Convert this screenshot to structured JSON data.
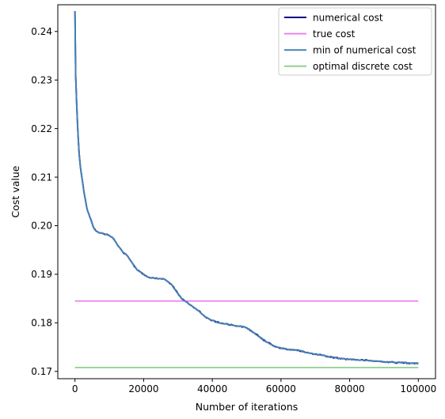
{
  "chart_data": {
    "type": "line",
    "title": "",
    "xlabel": "Number of iterations",
    "ylabel": "Cost value",
    "xlim": [
      -5000,
      105000
    ],
    "ylim": [
      0.1685,
      0.2455
    ],
    "xticks": [
      0,
      20000,
      40000,
      60000,
      80000,
      100000
    ],
    "xtick_labels": [
      "0",
      "20000",
      "40000",
      "60000",
      "80000",
      "100000"
    ],
    "yticks": [
      0.17,
      0.18,
      0.19,
      0.2,
      0.21,
      0.22,
      0.23,
      0.24
    ],
    "ytick_labels": [
      "0.17",
      "0.18",
      "0.19",
      "0.20",
      "0.21",
      "0.22",
      "0.23",
      "0.24"
    ],
    "grid": false,
    "legend_position": "top-right",
    "series": [
      {
        "name": "numerical cost",
        "color": "#000080",
        "style": "noisy",
        "x": [
          0,
          200,
          500,
          800,
          1200,
          1600,
          2000,
          2500,
          3000,
          3500,
          4000,
          4500,
          5000,
          5500,
          6000,
          7000,
          8000,
          9000,
          10000,
          11000,
          12000,
          13000,
          14000,
          15000,
          16000,
          17000,
          18000,
          19000,
          20000,
          21000,
          22000,
          23000,
          24000,
          25000,
          26000,
          27000,
          28000,
          29000,
          30000,
          31000,
          32000,
          33000,
          34000,
          35000,
          36000,
          37000,
          38000,
          39000,
          40000,
          42000,
          44000,
          46000,
          48000,
          50000,
          52000,
          54000,
          56000,
          58000,
          60000,
          62000,
          64000,
          66000,
          68000,
          70000,
          72000,
          74000,
          76000,
          78000,
          80000,
          82000,
          84000,
          86000,
          88000,
          90000,
          92000,
          94000,
          96000,
          98000,
          100000
        ],
        "y": [
          0.2442,
          0.231,
          0.225,
          0.22,
          0.215,
          0.212,
          0.21,
          0.2075,
          0.2055,
          0.2035,
          0.2025,
          0.2015,
          0.2005,
          0.1995,
          0.199,
          0.1985,
          0.1985,
          0.1982,
          0.198,
          0.1975,
          0.1965,
          0.1955,
          0.1945,
          0.194,
          0.193,
          0.192,
          0.191,
          0.1905,
          0.19,
          0.1895,
          0.1893,
          0.1892,
          0.1891,
          0.1891,
          0.189,
          0.1885,
          0.188,
          0.187,
          0.186,
          0.185,
          0.1845,
          0.184,
          0.1835,
          0.183,
          0.1825,
          0.1818,
          0.1812,
          0.1808,
          0.1805,
          0.18,
          0.1798,
          0.1795,
          0.1793,
          0.179,
          0.178,
          0.177,
          0.176,
          0.1752,
          0.1748,
          0.1745,
          0.1744,
          0.1742,
          0.1738,
          0.1735,
          0.1733,
          0.173,
          0.1728,
          0.1726,
          0.1725,
          0.1724,
          0.1723,
          0.1722,
          0.1721,
          0.172,
          0.1719,
          0.1718,
          0.1718,
          0.1717,
          0.1717
        ]
      },
      {
        "name": "true cost",
        "color": "#ee82ee",
        "style": "flat",
        "x": [
          0,
          100000
        ],
        "y": [
          0.1845,
          0.1845
        ]
      },
      {
        "name": "min of numerical cost",
        "color": "#4682b4",
        "style": "step",
        "x": [
          0,
          200,
          500,
          800,
          1200,
          1600,
          2000,
          2500,
          3000,
          3500,
          4000,
          4500,
          5000,
          5500,
          6000,
          7000,
          8000,
          9000,
          10000,
          11000,
          12000,
          13000,
          14000,
          15000,
          16000,
          17000,
          18000,
          19000,
          20000,
          21000,
          22000,
          23000,
          24000,
          25000,
          26000,
          27000,
          28000,
          29000,
          30000,
          31000,
          32000,
          33000,
          34000,
          35000,
          36000,
          37000,
          38000,
          39000,
          40000,
          42000,
          44000,
          46000,
          48000,
          50000,
          52000,
          54000,
          56000,
          58000,
          60000,
          62000,
          64000,
          66000,
          68000,
          70000,
          72000,
          74000,
          76000,
          78000,
          80000,
          82000,
          84000,
          86000,
          88000,
          90000,
          92000,
          94000,
          96000,
          98000,
          100000
        ],
        "y": [
          0.2442,
          0.231,
          0.225,
          0.22,
          0.215,
          0.212,
          0.21,
          0.2075,
          0.2055,
          0.2035,
          0.2025,
          0.2015,
          0.2005,
          0.1995,
          0.199,
          0.1985,
          0.1985,
          0.1982,
          0.198,
          0.1975,
          0.1965,
          0.1955,
          0.1945,
          0.194,
          0.193,
          0.192,
          0.191,
          0.1905,
          0.19,
          0.1895,
          0.1893,
          0.1892,
          0.1891,
          0.1891,
          0.189,
          0.1885,
          0.188,
          0.187,
          0.186,
          0.185,
          0.1845,
          0.184,
          0.1835,
          0.183,
          0.1825,
          0.1818,
          0.1812,
          0.1808,
          0.1805,
          0.18,
          0.1798,
          0.1795,
          0.1793,
          0.179,
          0.178,
          0.177,
          0.176,
          0.1752,
          0.1748,
          0.1745,
          0.1744,
          0.1742,
          0.1738,
          0.1735,
          0.1733,
          0.173,
          0.1728,
          0.1726,
          0.1725,
          0.1724,
          0.1723,
          0.1722,
          0.1721,
          0.172,
          0.1719,
          0.1718,
          0.1718,
          0.1717,
          0.1717
        ]
      },
      {
        "name": "optimal discrete cost",
        "color": "#90d090",
        "style": "flat",
        "x": [
          0,
          100000
        ],
        "y": [
          0.1708,
          0.1708
        ]
      }
    ]
  }
}
